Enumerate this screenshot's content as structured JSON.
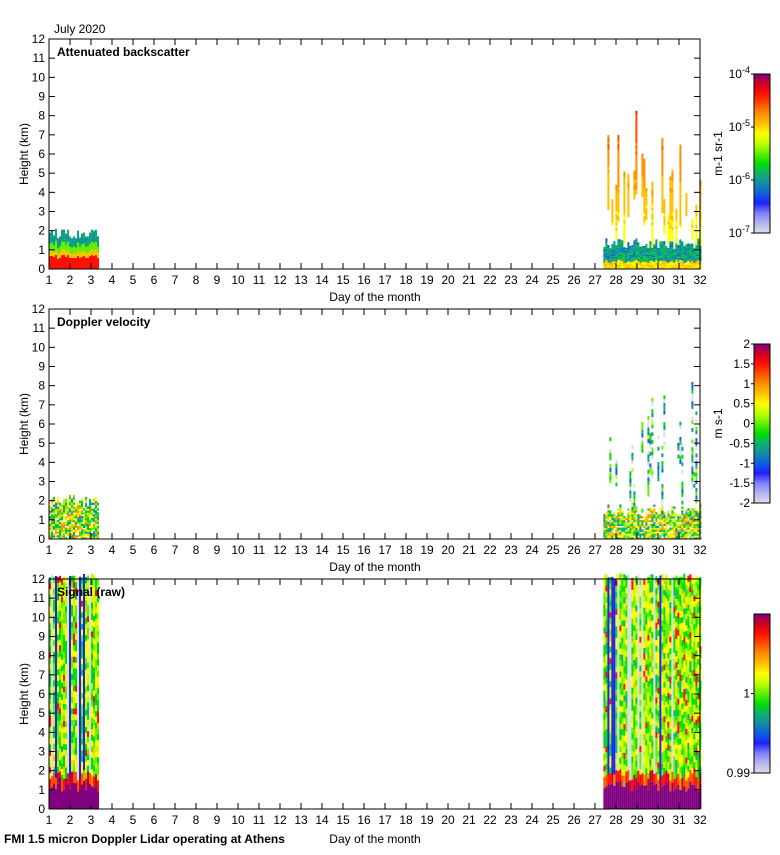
{
  "header": {
    "month_label": "July 2020"
  },
  "footer": {
    "instrument_label": "FMI 1.5 micron Doppler Lidar operating at Athens"
  },
  "chart_data": [
    {
      "type": "heatmap",
      "title": "Attenuated backscatter",
      "xlabel": "Day of the month",
      "ylabel": "Height (km)",
      "xlim": [
        1,
        32
      ],
      "ylim": [
        0,
        12
      ],
      "xticks": [
        "1",
        "2",
        "3",
        "4",
        "5",
        "6",
        "7",
        "8",
        "9",
        "10",
        "11",
        "12",
        "13",
        "14",
        "15",
        "16",
        "17",
        "18",
        "19",
        "20",
        "21",
        "22",
        "23",
        "24",
        "25",
        "26",
        "27",
        "28",
        "29",
        "30",
        "31",
        "32"
      ],
      "yticks": [
        "0",
        "1",
        "2",
        "3",
        "4",
        "5",
        "6",
        "7",
        "8",
        "9",
        "10",
        "11",
        "12"
      ],
      "data_periods": [
        {
          "start_day": 1.0,
          "end_day": 3.3
        },
        {
          "start_day": 27.4,
          "end_day": 32.0
        }
      ],
      "colorbar": {
        "scale": "log",
        "ticks": [
          "10-7",
          "10-6",
          "10-5",
          "10-4"
        ],
        "range": [
          1e-07,
          0.0001
        ],
        "unit_label": "m-1 sr-1"
      }
    },
    {
      "type": "heatmap",
      "title": "Doppler velocity",
      "xlabel": "Day of the month",
      "ylabel": "Height (km)",
      "xlim": [
        1,
        32
      ],
      "ylim": [
        0,
        12
      ],
      "xticks": [
        "1",
        "2",
        "3",
        "4",
        "5",
        "6",
        "7",
        "8",
        "9",
        "10",
        "11",
        "12",
        "13",
        "14",
        "15",
        "16",
        "17",
        "18",
        "19",
        "20",
        "21",
        "22",
        "23",
        "24",
        "25",
        "26",
        "27",
        "28",
        "29",
        "30",
        "31",
        "32"
      ],
      "yticks": [
        "0",
        "1",
        "2",
        "3",
        "4",
        "5",
        "6",
        "7",
        "8",
        "9",
        "10",
        "11",
        "12"
      ],
      "data_periods": [
        {
          "start_day": 1.0,
          "end_day": 3.3
        },
        {
          "start_day": 27.4,
          "end_day": 32.0
        }
      ],
      "colorbar": {
        "scale": "linear",
        "ticks": [
          "-2",
          "-1.5",
          "-1",
          "-0.5",
          "0",
          "0.5",
          "1",
          "1.5",
          "2"
        ],
        "range": [
          -2,
          2
        ],
        "unit_label": "m s-1"
      }
    },
    {
      "type": "heatmap",
      "title": "Signal (raw)",
      "xlabel": "Day of the month",
      "ylabel": "Height (km)",
      "xlim": [
        1,
        32
      ],
      "ylim": [
        0,
        12
      ],
      "xticks": [
        "1",
        "2",
        "3",
        "4",
        "5",
        "6",
        "7",
        "8",
        "9",
        "10",
        "11",
        "12",
        "13",
        "14",
        "15",
        "16",
        "17",
        "18",
        "19",
        "20",
        "21",
        "22",
        "23",
        "24",
        "25",
        "26",
        "27",
        "28",
        "29",
        "30",
        "31",
        "32"
      ],
      "yticks": [
        "0",
        "1",
        "2",
        "3",
        "4",
        "5",
        "6",
        "7",
        "8",
        "9",
        "10",
        "11",
        "12"
      ],
      "data_periods": [
        {
          "start_day": 1.0,
          "end_day": 3.3
        },
        {
          "start_day": 27.4,
          "end_day": 32.0
        }
      ],
      "colorbar": {
        "scale": "linear",
        "ticks": [
          "0.99",
          "1"
        ],
        "range": [
          0.99,
          1.01
        ],
        "unit_label": ""
      }
    }
  ],
  "colormap": [
    "#dcdcec",
    "#b4b4f0",
    "#8080ff",
    "#2020ff",
    "#1060e0",
    "#1090a0",
    "#10b070",
    "#00e000",
    "#60f000",
    "#c0ff00",
    "#ffff00",
    "#ffc000",
    "#ff9000",
    "#ff5000",
    "#ff1000",
    "#d00020",
    "#800080"
  ]
}
